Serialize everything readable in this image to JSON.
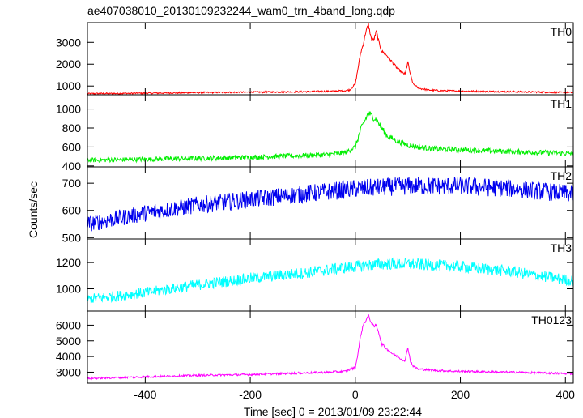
{
  "chart_data": {
    "type": "line",
    "title": "ae407038010_20130109232244_wam0_trn_4band_long.qdp",
    "xlabel": "Time [sec] 0 = 2013/01/09 23:22:44",
    "ylabel": "Counts/sec",
    "xlim": [
      -510,
      415
    ],
    "x_ticks": [
      -400,
      -200,
      0,
      200,
      400
    ],
    "grid": false,
    "panels": [
      {
        "name": "TH0",
        "color": "#ff0000",
        "ylim": [
          600,
          3900
        ],
        "y_ticks": [
          1000,
          2000,
          3000
        ],
        "noise": 35,
        "x": [
          -510,
          -400,
          -300,
          -200,
          -100,
          -50,
          -20,
          -10,
          0,
          5,
          10,
          15,
          20,
          25,
          30,
          35,
          40,
          45,
          50,
          60,
          70,
          80,
          90,
          95,
          100,
          105,
          110,
          120,
          140,
          160,
          200,
          300,
          415
        ],
        "y": [
          650,
          670,
          700,
          720,
          740,
          760,
          790,
          830,
          1100,
          1800,
          2500,
          2900,
          3500,
          3800,
          3200,
          3100,
          3500,
          3000,
          2600,
          2400,
          2100,
          1800,
          1600,
          1550,
          2100,
          1500,
          1100,
          900,
          820,
          790,
          770,
          740,
          700
        ]
      },
      {
        "name": "TH1",
        "color": "#00ee00",
        "ylim": [
          390,
          1150
        ],
        "y_ticks": [
          400,
          600,
          800,
          1000
        ],
        "noise": 25,
        "x": [
          -510,
          -400,
          -300,
          -200,
          -100,
          -50,
          -20,
          0,
          10,
          20,
          25,
          30,
          40,
          50,
          60,
          80,
          100,
          120,
          150,
          200,
          300,
          415
        ],
        "y": [
          460,
          470,
          480,
          490,
          510,
          520,
          540,
          600,
          780,
          900,
          960,
          930,
          890,
          800,
          720,
          660,
          620,
          600,
          580,
          570,
          550,
          530
        ]
      },
      {
        "name": "TH2",
        "color": "#0000ee",
        "ylim": [
          495,
          760
        ],
        "y_ticks": [
          500,
          600,
          700
        ],
        "noise": 30,
        "x": [
          -510,
          -400,
          -300,
          -200,
          -100,
          0,
          100,
          200,
          300,
          415
        ],
        "y": [
          550,
          590,
          620,
          640,
          660,
          680,
          690,
          690,
          680,
          660
        ]
      },
      {
        "name": "TH3",
        "color": "#00ffff",
        "ylim": [
          830,
          1380
        ],
        "y_ticks": [
          1000,
          1200
        ],
        "noise": 40,
        "x": [
          -510,
          -400,
          -300,
          -200,
          -100,
          0,
          50,
          100,
          200,
          300,
          415
        ],
        "y": [
          920,
          970,
          1030,
          1080,
          1120,
          1170,
          1190,
          1190,
          1170,
          1130,
          1060
        ]
      },
      {
        "name": "TH0123",
        "color": "#ff00ff",
        "ylim": [
          2300,
          6900
        ],
        "y_ticks": [
          3000,
          4000,
          5000,
          6000
        ],
        "noise": 60,
        "x": [
          -510,
          -400,
          -300,
          -200,
          -100,
          -50,
          -20,
          0,
          5,
          10,
          15,
          20,
          25,
          30,
          35,
          40,
          45,
          50,
          60,
          70,
          80,
          90,
          95,
          100,
          105,
          110,
          120,
          140,
          160,
          200,
          300,
          415
        ],
        "y": [
          2600,
          2700,
          2800,
          2850,
          2950,
          3000,
          3050,
          3300,
          4200,
          5300,
          6000,
          6300,
          6600,
          6200,
          5900,
          6000,
          5500,
          4800,
          4500,
          4200,
          4000,
          3800,
          3750,
          4600,
          3700,
          3400,
          3200,
          3150,
          3100,
          3050,
          3000,
          2900
        ]
      }
    ]
  }
}
